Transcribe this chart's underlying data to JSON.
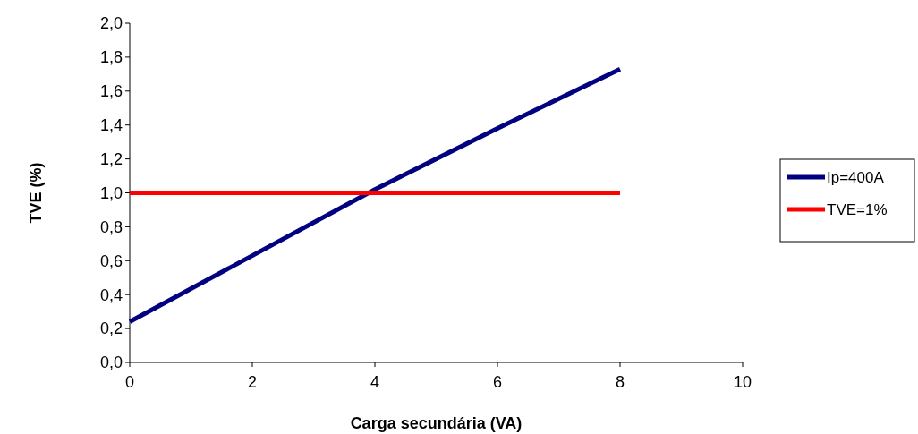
{
  "chart_data": {
    "type": "line",
    "xlabel": "Carga secundária (VA)",
    "ylabel": "TVE (%)",
    "x": [
      0,
      2,
      4,
      6,
      8
    ],
    "series": [
      {
        "name": "Ip=400A",
        "color": "#000080",
        "values": [
          0.24,
          0.63,
          1.02,
          1.38,
          1.73
        ]
      },
      {
        "name": "TVE=1%",
        "color": "#ff0000",
        "values": [
          1.0,
          1.0,
          1.0,
          1.0,
          1.0
        ]
      }
    ],
    "xlim": [
      0,
      10
    ],
    "xticks": [
      0,
      2,
      4,
      6,
      8,
      10
    ],
    "ylim": [
      0,
      2
    ],
    "yticks": [
      {
        "value": 0,
        "label": "0,0"
      },
      {
        "value": 0.2,
        "label": "0,2"
      },
      {
        "value": 0.4,
        "label": "0,4"
      },
      {
        "value": 0.6,
        "label": "0,6"
      },
      {
        "value": 0.8,
        "label": "0,8"
      },
      {
        "value": 1,
        "label": "1,0"
      },
      {
        "value": 1.2,
        "label": "1,2"
      },
      {
        "value": 1.4,
        "label": "1,4"
      },
      {
        "value": 1.6,
        "label": "1,6"
      },
      {
        "value": 1.8,
        "label": "1,8"
      },
      {
        "value": 2,
        "label": "2,0"
      }
    ],
    "grid": false,
    "legend": "right",
    "marker": "none",
    "line_style": "solid"
  }
}
